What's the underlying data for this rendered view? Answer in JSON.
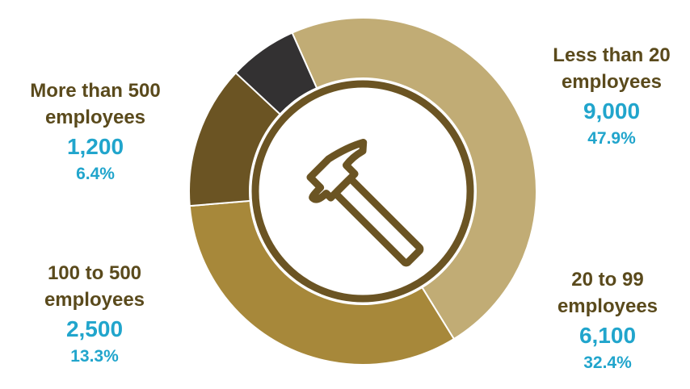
{
  "chart_data": {
    "type": "pie",
    "title": "",
    "categories": [
      "Less than 20 employees",
      "20 to 99 employees",
      "100 to 500 employees",
      "More than 500 employees"
    ],
    "values": [
      9000,
      6100,
      2500,
      1200
    ],
    "percent_labels": [
      "47.9%",
      "32.4%",
      "13.3%",
      "6.4%"
    ],
    "value_labels": [
      "9,000",
      "6,100",
      "2,500",
      "1,200"
    ],
    "label_lines": [
      [
        "Less than 20",
        "employees"
      ],
      [
        "20 to 99",
        "employees"
      ],
      [
        "100 to 500",
        "employees"
      ],
      [
        "More than 500",
        "employees"
      ]
    ],
    "colors": [
      "#c1ac75",
      "#a7883a",
      "#6b5423",
      "#333132"
    ],
    "center_icon": "hammer-icon",
    "icon_color": "#6b5423"
  }
}
